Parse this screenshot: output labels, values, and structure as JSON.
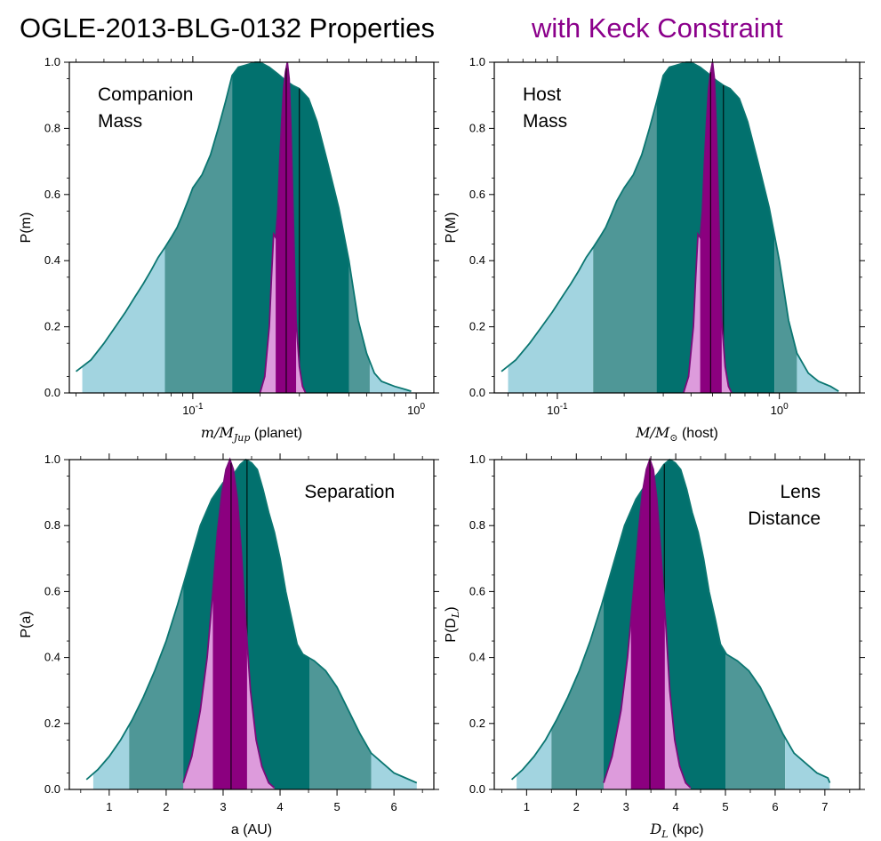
{
  "title": {
    "main": "OGLE-2013-BLG-0132 Properties",
    "sub": "with Keck Constraint",
    "sub_color": "#8b008b"
  },
  "colors": {
    "prior_outer": "#a2d4e0",
    "prior_1sigma": "#4f9797",
    "prior_median": "#02716e",
    "prior_outline": "#0b7671",
    "keck_outer": "#dd9bdc",
    "keck_1sigma": "#8b007f",
    "keck_outline": "#7a0b7a"
  },
  "chart_data": [
    {
      "id": "companion-mass",
      "type": "area",
      "label_lines": [
        "Companion",
        "Mass"
      ],
      "label_pos": "top-left",
      "xscale": "log",
      "xlim": [
        0.028,
        1.2
      ],
      "ylim": [
        0,
        1.0
      ],
      "xlabel_math": "m/M",
      "xlabel_sub": "Jup",
      "xlabel_rest": " (planet)",
      "ylabel": "P(m)",
      "major_ticks": [
        {
          "v": 0.1,
          "base": "10",
          "exp": "-1"
        },
        {
          "v": 1.0,
          "base": "10",
          "exp": "0"
        }
      ],
      "minor_ticks": [
        0.03,
        0.04,
        0.05,
        0.06,
        0.07,
        0.08,
        0.09,
        0.2,
        0.3,
        0.4,
        0.5,
        0.6,
        0.7,
        0.8,
        0.9
      ],
      "y_ticks": [
        0.0,
        0.2,
        0.4,
        0.6,
        0.8,
        1.0
      ],
      "prior": {
        "x": [
          0.03,
          0.035,
          0.04,
          0.045,
          0.05,
          0.055,
          0.06,
          0.065,
          0.07,
          0.075,
          0.08,
          0.085,
          0.09,
          0.095,
          0.1,
          0.11,
          0.12,
          0.13,
          0.14,
          0.15,
          0.16,
          0.17,
          0.18,
          0.19,
          0.2,
          0.22,
          0.24,
          0.26,
          0.28,
          0.3,
          0.33,
          0.36,
          0.4,
          0.45,
          0.5,
          0.55,
          0.6,
          0.65,
          0.7,
          0.8,
          0.9,
          0.95
        ],
        "y": [
          0.065,
          0.1,
          0.15,
          0.2,
          0.245,
          0.29,
          0.33,
          0.37,
          0.41,
          0.44,
          0.47,
          0.5,
          0.54,
          0.58,
          0.62,
          0.66,
          0.72,
          0.8,
          0.88,
          0.96,
          0.985,
          0.99,
          0.995,
          1.0,
          1.0,
          0.985,
          0.965,
          0.945,
          0.93,
          0.92,
          0.89,
          0.82,
          0.7,
          0.56,
          0.4,
          0.22,
          0.12,
          0.06,
          0.035,
          0.02,
          0.01,
          0.005
        ],
        "bounds": [
          0.032,
          0.075,
          0.15,
          0.5,
          0.62
        ],
        "median": 0.3
      },
      "keck": {
        "x": [
          0.2,
          0.21,
          0.22,
          0.225,
          0.23,
          0.235,
          0.24,
          0.245,
          0.25,
          0.255,
          0.26,
          0.265,
          0.27,
          0.275,
          0.28,
          0.285,
          0.29,
          0.3,
          0.31,
          0.32
        ],
        "y": [
          0.0,
          0.05,
          0.2,
          0.35,
          0.48,
          0.47,
          0.55,
          0.7,
          0.82,
          0.92,
          0.97,
          1.0,
          0.95,
          0.8,
          0.6,
          0.4,
          0.22,
          0.08,
          0.02,
          0.0
        ],
        "bounds": [
          0.205,
          0.235,
          0.29,
          0.32
        ],
        "median": 0.262
      }
    },
    {
      "id": "host-mass",
      "type": "area",
      "label_lines": [
        "Host",
        "Mass"
      ],
      "label_pos": "top-left",
      "xscale": "log",
      "xlim": [
        0.052,
        2.3
      ],
      "ylim": [
        0,
        1.0
      ],
      "xlabel_math": "M/M",
      "xlabel_sub": "⊙",
      "xlabel_rest": " (host)",
      "ylabel": "P(M)",
      "major_ticks": [
        {
          "v": 0.1,
          "base": "10",
          "exp": "-1"
        },
        {
          "v": 1.0,
          "base": "10",
          "exp": "0"
        }
      ],
      "minor_ticks": [
        0.06,
        0.07,
        0.08,
        0.09,
        0.2,
        0.3,
        0.4,
        0.5,
        0.6,
        0.7,
        0.8,
        0.9,
        2.0
      ],
      "y_ticks": [
        0.0,
        0.2,
        0.4,
        0.6,
        0.8,
        1.0
      ],
      "prior": {
        "x": [
          0.056,
          0.065,
          0.075,
          0.085,
          0.095,
          0.105,
          0.115,
          0.125,
          0.135,
          0.145,
          0.155,
          0.165,
          0.175,
          0.185,
          0.2,
          0.22,
          0.24,
          0.26,
          0.28,
          0.3,
          0.32,
          0.34,
          0.36,
          0.38,
          0.4,
          0.44,
          0.48,
          0.52,
          0.56,
          0.6,
          0.66,
          0.72,
          0.8,
          0.9,
          1.0,
          1.1,
          1.2,
          1.35,
          1.5,
          1.7,
          1.85
        ],
        "y": [
          0.065,
          0.1,
          0.15,
          0.2,
          0.245,
          0.29,
          0.33,
          0.37,
          0.41,
          0.44,
          0.47,
          0.5,
          0.54,
          0.58,
          0.62,
          0.66,
          0.72,
          0.8,
          0.88,
          0.96,
          0.985,
          0.99,
          0.995,
          1.0,
          1.0,
          0.985,
          0.965,
          0.945,
          0.93,
          0.92,
          0.89,
          0.82,
          0.7,
          0.56,
          0.4,
          0.22,
          0.12,
          0.06,
          0.035,
          0.02,
          0.005
        ],
        "bounds": [
          0.06,
          0.145,
          0.28,
          0.95,
          1.2
        ],
        "median": 0.56
      },
      "keck": {
        "x": [
          0.37,
          0.39,
          0.41,
          0.42,
          0.43,
          0.44,
          0.45,
          0.46,
          0.47,
          0.48,
          0.49,
          0.5,
          0.51,
          0.52,
          0.53,
          0.54,
          0.55,
          0.57,
          0.59,
          0.61
        ],
        "y": [
          0.0,
          0.05,
          0.2,
          0.35,
          0.48,
          0.47,
          0.55,
          0.7,
          0.82,
          0.92,
          0.97,
          1.0,
          0.95,
          0.8,
          0.6,
          0.4,
          0.22,
          0.08,
          0.02,
          0.0
        ],
        "bounds": [
          0.38,
          0.44,
          0.55,
          0.6
        ],
        "median": 0.49
      }
    },
    {
      "id": "separation",
      "type": "area",
      "label_lines": [
        "Separation"
      ],
      "label_pos": "top-right",
      "xscale": "linear",
      "xlim": [
        0.3,
        6.7
      ],
      "ylim": [
        0,
        1.0
      ],
      "xlabel_text": "a (AU)",
      "ylabel": "P(a)",
      "major_ticks": [
        {
          "v": 1,
          "t": "1"
        },
        {
          "v": 2,
          "t": "2"
        },
        {
          "v": 3,
          "t": "3"
        },
        {
          "v": 4,
          "t": "4"
        },
        {
          "v": 5,
          "t": "5"
        },
        {
          "v": 6,
          "t": "6"
        }
      ],
      "minor_ticks": [
        0.5,
        1.5,
        2.5,
        3.5,
        4.5,
        5.5,
        6.5
      ],
      "y_ticks": [
        0.0,
        0.2,
        0.4,
        0.6,
        0.8,
        1.0
      ],
      "prior": {
        "x": [
          0.6,
          0.8,
          1.0,
          1.2,
          1.4,
          1.6,
          1.8,
          2.0,
          2.2,
          2.4,
          2.6,
          2.8,
          3.0,
          3.1,
          3.2,
          3.3,
          3.4,
          3.5,
          3.6,
          3.7,
          3.8,
          3.9,
          4.0,
          4.1,
          4.2,
          4.3,
          4.4,
          4.5,
          4.6,
          4.8,
          5.0,
          5.2,
          5.4,
          5.6,
          5.8,
          6.0,
          6.2,
          6.4
        ],
        "y": [
          0.03,
          0.06,
          0.1,
          0.15,
          0.21,
          0.28,
          0.36,
          0.45,
          0.56,
          0.68,
          0.8,
          0.88,
          0.93,
          0.94,
          0.96,
          0.985,
          1.0,
          0.99,
          0.97,
          0.91,
          0.84,
          0.78,
          0.7,
          0.6,
          0.52,
          0.44,
          0.41,
          0.4,
          0.39,
          0.36,
          0.31,
          0.24,
          0.17,
          0.11,
          0.08,
          0.05,
          0.035,
          0.02
        ],
        "bounds": [
          0.72,
          1.35,
          2.3,
          4.52,
          5.6
        ],
        "median": 3.42
      },
      "keck": {
        "x": [
          2.3,
          2.45,
          2.6,
          2.72,
          2.82,
          2.9,
          2.98,
          3.05,
          3.12,
          3.18,
          3.25,
          3.32,
          3.4,
          3.48,
          3.58,
          3.68,
          3.8,
          3.9
        ],
        "y": [
          0.02,
          0.1,
          0.24,
          0.4,
          0.6,
          0.78,
          0.9,
          0.97,
          1.0,
          0.97,
          0.88,
          0.72,
          0.5,
          0.3,
          0.15,
          0.07,
          0.02,
          0.005
        ],
        "bounds": [
          2.32,
          2.82,
          3.42,
          3.68
        ],
        "median": 3.14
      }
    },
    {
      "id": "lens-distance",
      "type": "area",
      "label_lines": [
        "Lens",
        "Distance"
      ],
      "label_pos": "top-right",
      "xscale": "linear",
      "xlim": [
        0.35,
        7.7
      ],
      "ylim": [
        0,
        1.0
      ],
      "xlabel_math": "D",
      "xlabel_sub": "L",
      "xlabel_rest": " (kpc)",
      "ylabel_math": "P(D",
      "ylabel_sub": "L",
      "ylabel_rest": ")",
      "major_ticks": [
        {
          "v": 1,
          "t": "1"
        },
        {
          "v": 2,
          "t": "2"
        },
        {
          "v": 3,
          "t": "3"
        },
        {
          "v": 4,
          "t": "4"
        },
        {
          "v": 5,
          "t": "5"
        },
        {
          "v": 6,
          "t": "6"
        },
        {
          "v": 7,
          "t": "7"
        }
      ],
      "minor_ticks": [
        0.5,
        1.5,
        2.5,
        3.5,
        4.5,
        5.5,
        6.5,
        7.5
      ],
      "y_ticks": [
        0.0,
        0.2,
        0.4,
        0.6,
        0.8,
        1.0
      ],
      "prior": {
        "x": [
          0.7,
          0.92,
          1.15,
          1.38,
          1.6,
          1.83,
          2.06,
          2.28,
          2.51,
          2.74,
          2.97,
          3.2,
          3.42,
          3.54,
          3.65,
          3.76,
          3.88,
          3.99,
          4.1,
          4.22,
          4.33,
          4.45,
          4.56,
          4.67,
          4.79,
          4.9,
          5.02,
          5.13,
          5.24,
          5.47,
          5.7,
          5.93,
          6.15,
          6.38,
          6.61,
          6.84,
          7.06,
          7.1
        ],
        "y": [
          0.03,
          0.06,
          0.1,
          0.15,
          0.21,
          0.28,
          0.36,
          0.45,
          0.56,
          0.68,
          0.8,
          0.88,
          0.93,
          0.94,
          0.96,
          0.985,
          1.0,
          0.99,
          0.97,
          0.91,
          0.84,
          0.78,
          0.7,
          0.6,
          0.52,
          0.44,
          0.41,
          0.4,
          0.39,
          0.36,
          0.31,
          0.24,
          0.17,
          0.11,
          0.08,
          0.05,
          0.035,
          0.02
        ],
        "bounds": [
          0.8,
          1.5,
          2.55,
          5.0,
          6.2
        ],
        "median": 3.77
      },
      "keck": {
        "x": [
          2.55,
          2.72,
          2.9,
          3.03,
          3.15,
          3.25,
          3.33,
          3.41,
          3.48,
          3.55,
          3.62,
          3.7,
          3.8,
          3.88,
          3.98,
          4.08,
          4.2,
          4.3
        ],
        "y": [
          0.02,
          0.1,
          0.24,
          0.4,
          0.6,
          0.78,
          0.9,
          0.97,
          1.0,
          0.97,
          0.88,
          0.72,
          0.5,
          0.3,
          0.15,
          0.07,
          0.02,
          0.005
        ],
        "bounds": [
          2.58,
          3.1,
          3.78,
          4.12
        ],
        "median": 3.48
      }
    }
  ]
}
